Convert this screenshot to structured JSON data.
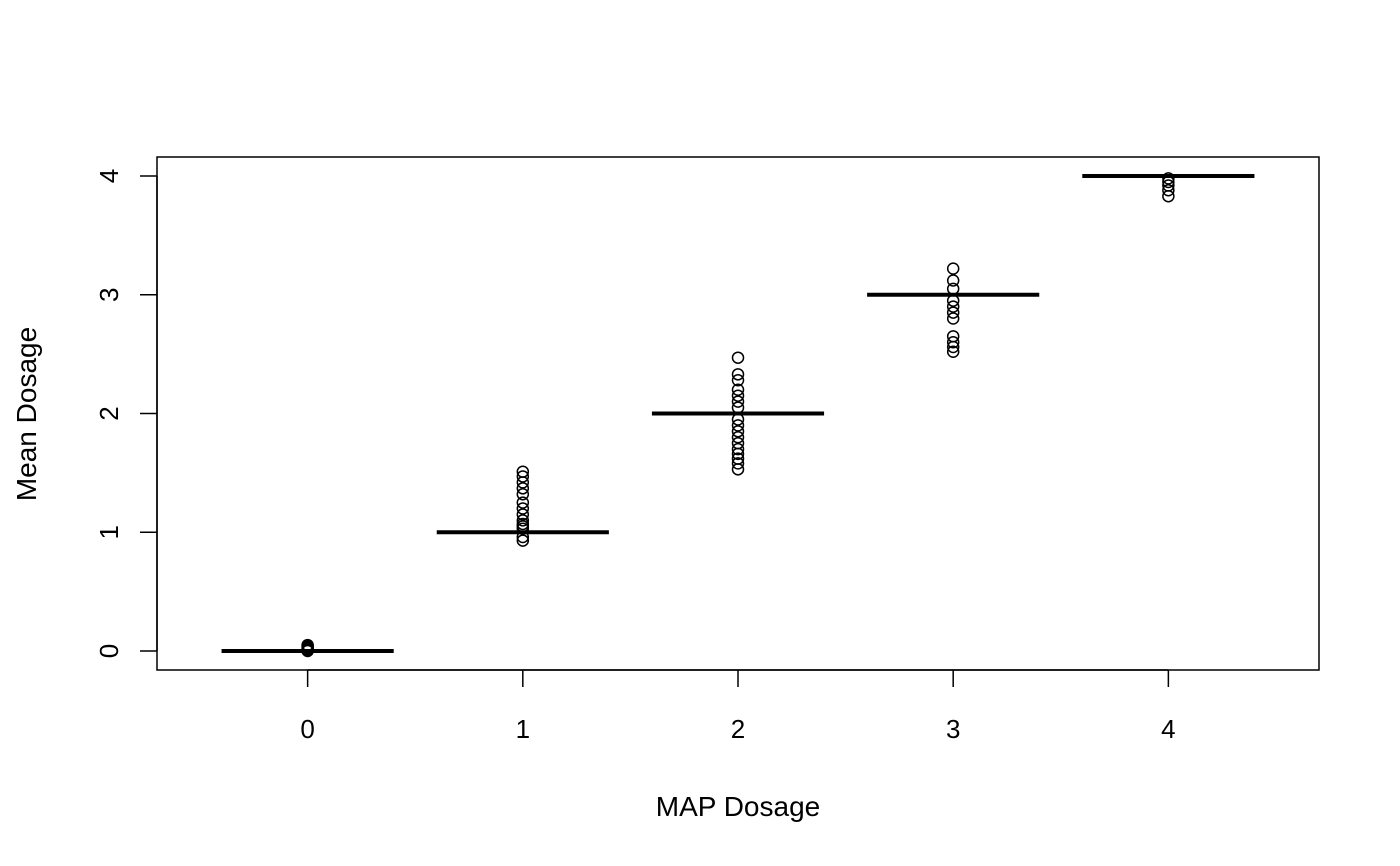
{
  "chart_data": {
    "type": "boxplot",
    "title": "",
    "xlabel": "MAP Dosage",
    "ylabel": "Mean Dosage",
    "categories": [
      "0",
      "1",
      "2",
      "3",
      "4"
    ],
    "xlim": [
      -0.7,
      4.7
    ],
    "ylim": [
      -0.16,
      4.16
    ],
    "yticks": [
      0,
      1,
      2,
      3,
      4
    ],
    "xticks": [
      0,
      1,
      2,
      3,
      4
    ],
    "box_halfwidth": 0.4,
    "boxes": [
      {
        "x": 0,
        "median": 0.0,
        "outliers": [
          0.0,
          0.01,
          0.02,
          0.03,
          0.04,
          0.05
        ]
      },
      {
        "x": 1,
        "median": 1.0,
        "outliers": [
          0.93,
          0.96,
          1.03,
          1.05,
          1.07,
          1.1,
          1.15,
          1.2,
          1.25,
          1.32,
          1.37,
          1.42,
          1.47,
          1.51
        ]
      },
      {
        "x": 2,
        "median": 2.0,
        "outliers": [
          1.53,
          1.58,
          1.62,
          1.66,
          1.7,
          1.75,
          1.8,
          1.85,
          1.9,
          1.95,
          2.05,
          2.1,
          2.15,
          2.2,
          2.28,
          2.33,
          2.47
        ]
      },
      {
        "x": 3,
        "median": 3.0,
        "outliers": [
          2.52,
          2.56,
          2.6,
          2.65,
          2.8,
          2.85,
          2.9,
          2.95,
          3.05,
          3.12,
          3.22
        ]
      },
      {
        "x": 4,
        "median": 4.0,
        "outliers": [
          3.83,
          3.88,
          3.92,
          3.95,
          3.98
        ]
      }
    ],
    "grid": false,
    "legend": "none"
  }
}
